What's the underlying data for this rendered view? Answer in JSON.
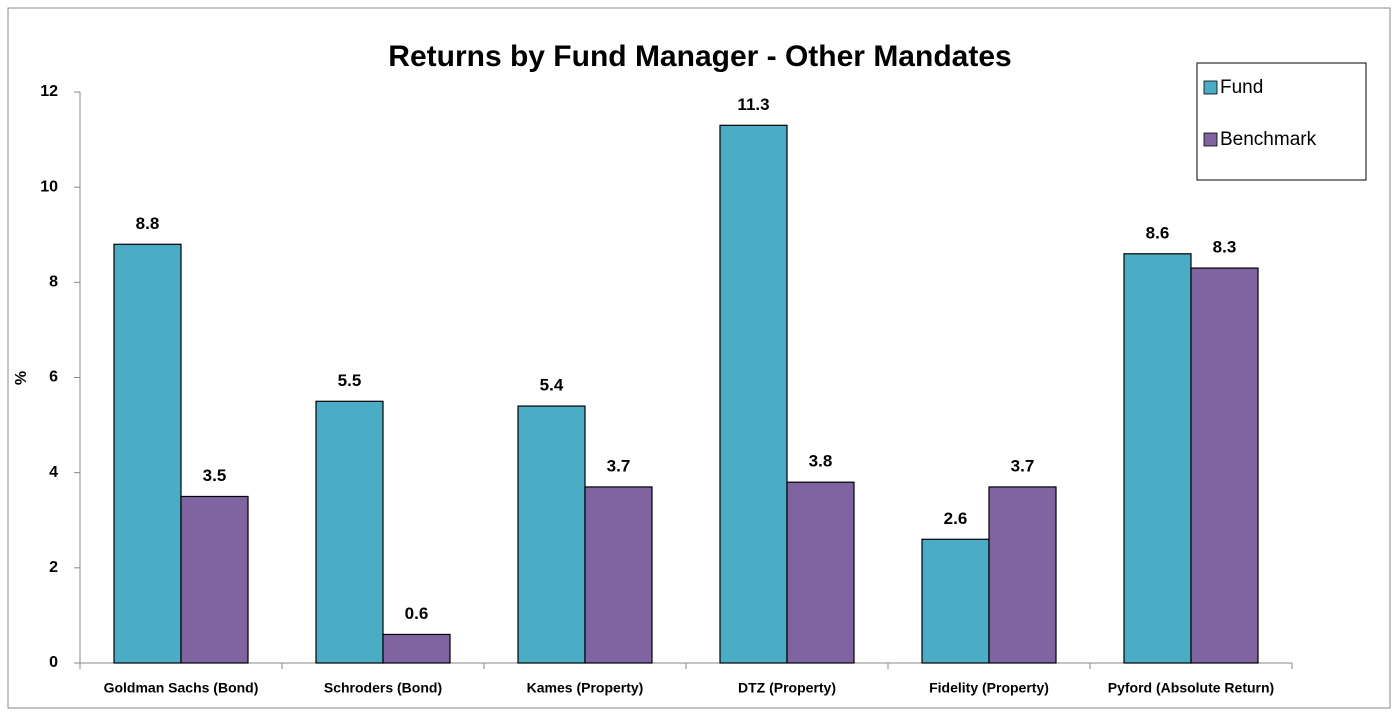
{
  "chart_data": {
    "type": "bar",
    "title": "Returns by Fund Manager - Other Mandates",
    "y_label": "%",
    "categories": [
      "Goldman Sachs (Bond)",
      "Schroders (Bond)",
      "Kames (Property)",
      "DTZ (Property)",
      "Fidelity (Property)",
      "Pyford (Absolute Return)"
    ],
    "series": [
      {
        "name": "Fund",
        "color": "#4bacc6",
        "values": [
          8.8,
          5.5,
          5.4,
          11.3,
          2.6,
          8.6
        ]
      },
      {
        "name": "Benchmark",
        "color": "#8064a2",
        "values": [
          3.5,
          0.6,
          3.7,
          3.8,
          3.7,
          8.3
        ]
      }
    ],
    "ylim": [
      0,
      12
    ],
    "yticks": [
      0,
      2,
      4,
      6,
      8,
      10,
      12
    ],
    "grid": false,
    "legend": "top-right"
  }
}
